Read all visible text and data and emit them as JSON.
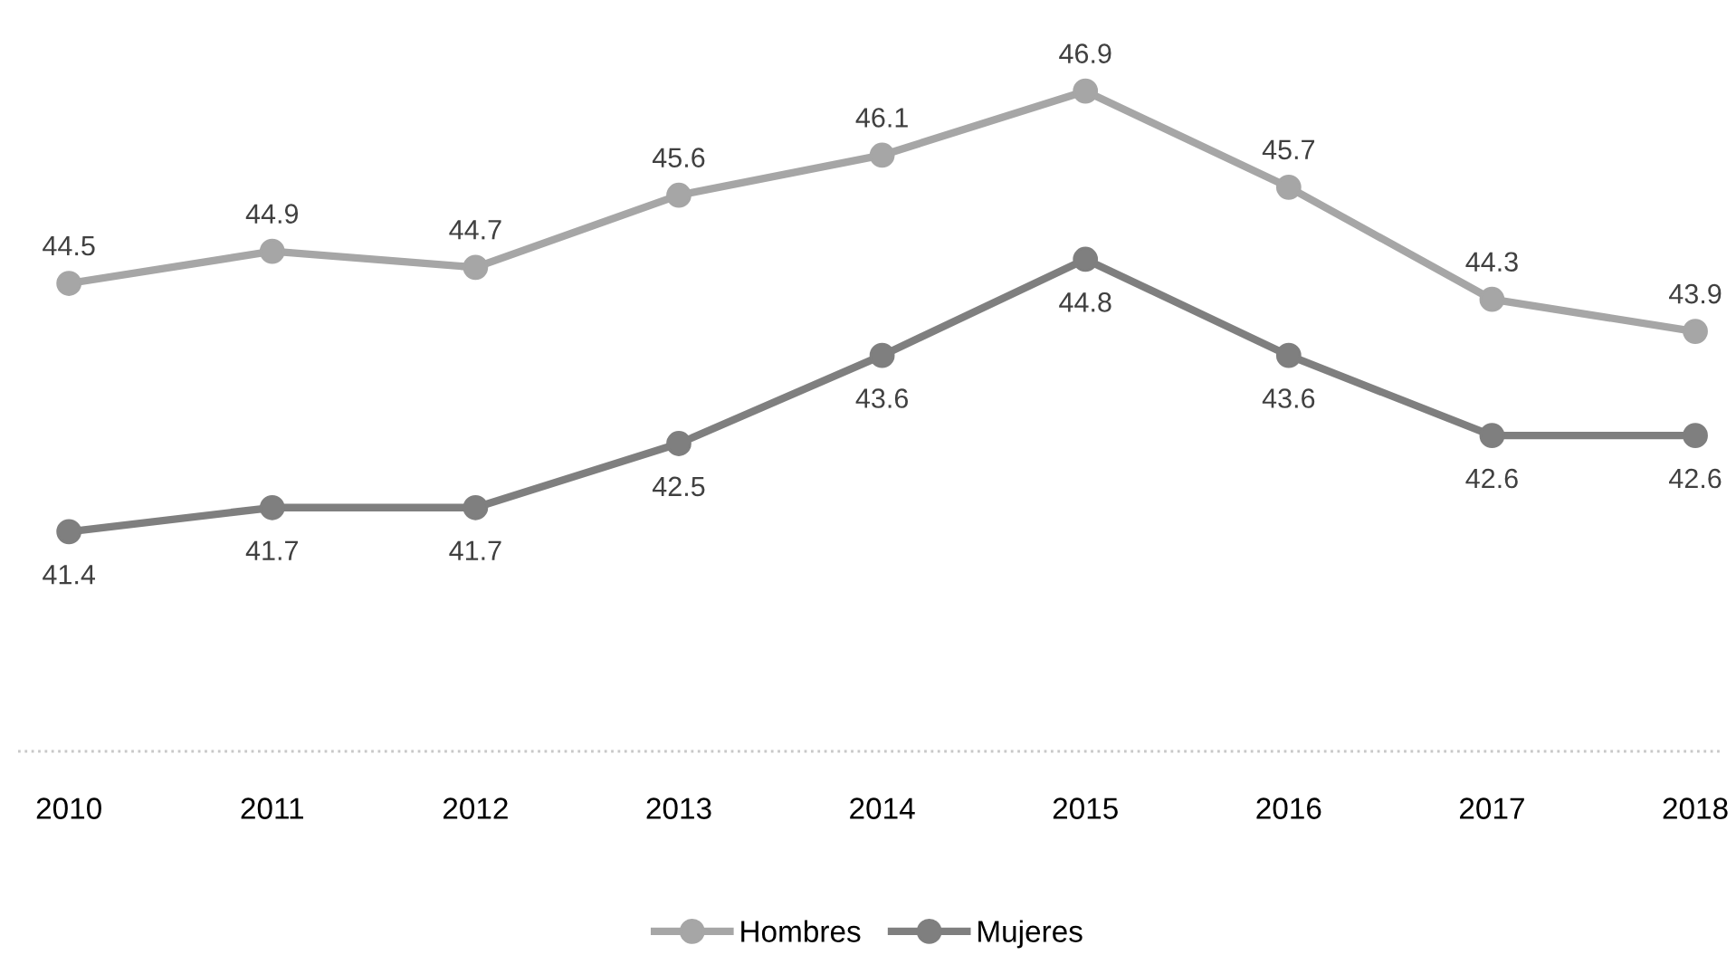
{
  "chart_data": {
    "type": "line",
    "categories": [
      "2010",
      "2011",
      "2012",
      "2013",
      "2014",
      "2015",
      "2016",
      "2017",
      "2018"
    ],
    "series": [
      {
        "name": "Hombres",
        "color": "#a6a6a6",
        "values": [
          44.5,
          44.9,
          44.7,
          45.6,
          46.1,
          46.9,
          45.7,
          44.3,
          43.9
        ]
      },
      {
        "name": "Mujeres",
        "color": "#7f7f7f",
        "values": [
          41.4,
          41.7,
          41.7,
          42.5,
          43.6,
          44.8,
          43.6,
          42.6,
          42.6
        ]
      }
    ],
    "tick_labels": "x",
    "data_labels": true,
    "legend": "bottom",
    "marker": "circle",
    "line_style": "solid",
    "grid": false
  }
}
